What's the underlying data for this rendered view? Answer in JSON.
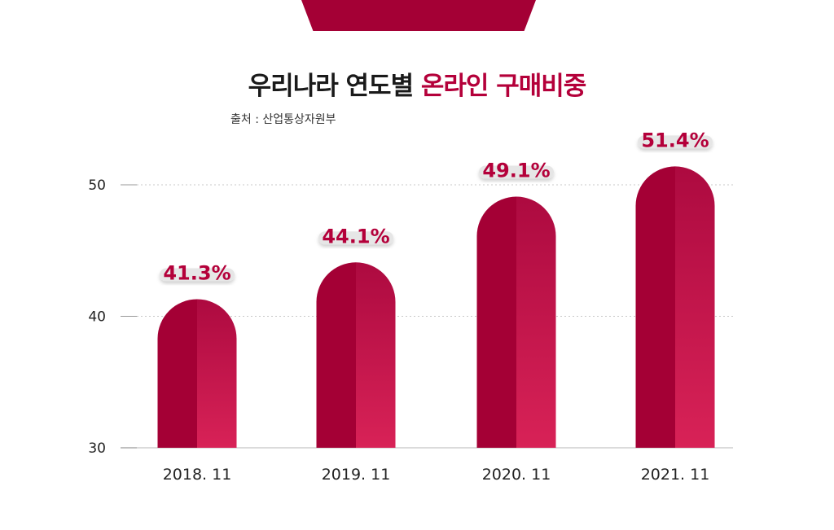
{
  "header": {
    "title_part1": "우리나라 연도별",
    "title_part2": "온라인 구매비중",
    "source": "출처 : 산업통상자원부"
  },
  "colors": {
    "accent": "#b4003a",
    "bar_dark": "#a40035",
    "bar_light": "#d01f58"
  },
  "chart_data": {
    "type": "bar",
    "title": "우리나라 연도별 온라인 구매비중",
    "subtitle": "출처 : 산업통상자원부",
    "categories": [
      "2018. 11",
      "2019. 11",
      "2020. 11",
      "2021. 11"
    ],
    "values": [
      41.3,
      44.1,
      49.1,
      51.4
    ],
    "value_labels": [
      "41.3%",
      "44.1%",
      "49.1%",
      "51.4%"
    ],
    "yticks": [
      30,
      40,
      50
    ],
    "ylim": [
      30,
      50
    ],
    "xlabel": "",
    "ylabel": "",
    "grid": true
  }
}
